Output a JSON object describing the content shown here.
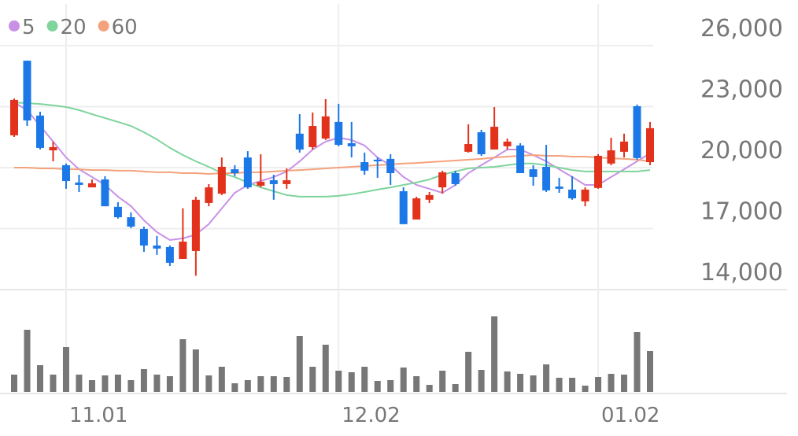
{
  "chart_data": {
    "type": "candlestick",
    "categories": [
      null,
      null,
      null,
      null,
      "11.01",
      null,
      null,
      null,
      null,
      null,
      null,
      null,
      null,
      null,
      null,
      null,
      null,
      null,
      null,
      null,
      null,
      null,
      null,
      null,
      null,
      "12.02",
      null,
      null,
      null,
      null,
      null,
      null,
      null,
      null,
      null,
      null,
      null,
      null,
      null,
      null,
      null,
      null,
      null,
      null,
      null,
      "01.02",
      null,
      null,
      null,
      null
    ],
    "open": [
      21590,
      25260,
      22560,
      20850,
      20120,
      19270,
      19030,
      19420,
      18070,
      17560,
      16980,
      16170,
      16090,
      15510,
      15900,
      18260,
      18720,
      19920,
      20500,
      19110,
      19380,
      19190,
      21670,
      21010,
      21430,
      22250,
      21200,
      20270,
      20390,
      20430,
      18840,
      17450,
      18420,
      19030,
      19730,
      20780,
      21740,
      20890,
      21050,
      21090,
      19920,
      20040,
      19070,
      18920,
      18340,
      19000,
      20200,
      20780,
      23020,
      20270
    ],
    "high": [
      23400,
      25260,
      22750,
      21280,
      20200,
      19650,
      19420,
      19580,
      18300,
      17800,
      17100,
      16640,
      16170,
      18000,
      18570,
      19190,
      20500,
      20120,
      20810,
      20660,
      19650,
      19960,
      22630,
      22710,
      23370,
      23140,
      22250,
      20740,
      20500,
      20660,
      19030,
      18570,
      18800,
      19850,
      19850,
      22130,
      21860,
      22980,
      21430,
      21200,
      20120,
      21120,
      19500,
      19580,
      19030,
      20660,
      21470,
      21670,
      23100,
      22250
    ],
    "low": [
      21510,
      22050,
      20890,
      20310,
      18960,
      18800,
      19030,
      18100,
      17490,
      17020,
      15860,
      15710,
      15160,
      15510,
      14680,
      18100,
      18650,
      19580,
      18960,
      19030,
      18420,
      18960,
      20740,
      20890,
      21360,
      21050,
      20500,
      19650,
      19500,
      19150,
      17220,
      17450,
      18260,
      18720,
      19110,
      20740,
      20580,
      20890,
      20890,
      19730,
      19110,
      18800,
      18760,
      18420,
      18100,
      18960,
      20120,
      20500,
      20390,
      20120
    ],
    "close": [
      23330,
      22320,
      20970,
      21010,
      19340,
      19150,
      19230,
      18100,
      17560,
      17100,
      16170,
      16020,
      15320,
      16360,
      18420,
      19030,
      20040,
      19730,
      19030,
      19300,
      19190,
      19380,
      20890,
      22050,
      22520,
      21120,
      21050,
      19850,
      20310,
      19730,
      17220,
      18490,
      18650,
      19770,
      19190,
      21160,
      20660,
      22010,
      21280,
      19730,
      19540,
      18880,
      18960,
      18490,
      18920,
      20580,
      20850,
      21280,
      20470,
      21940
    ],
    "up_color": "#e2321c",
    "down_color": "#1b78e6",
    "series": [
      {
        "name": "5",
        "color": "#c891e6",
        "values": [
          23210,
          22830,
          22050,
          21280,
          20500,
          19920,
          19540,
          19150,
          18570,
          18110,
          17410,
          16830,
          16440,
          16520,
          16710,
          17220,
          17990,
          18760,
          19150,
          19340,
          19540,
          19810,
          20310,
          20890,
          21280,
          21470,
          21360,
          21090,
          20500,
          20120,
          19540,
          19150,
          18960,
          18760,
          19150,
          19730,
          20120,
          20500,
          20890,
          20890,
          20620,
          20310,
          19920,
          19540,
          19150,
          19150,
          19540,
          19920,
          20310,
          20700
        ]
      },
      {
        "name": "20",
        "color": "#7fd49c",
        "values": [
          23210,
          23170,
          23130,
          23060,
          22980,
          22830,
          22630,
          22440,
          22250,
          22050,
          21740,
          21390,
          20970,
          20620,
          20310,
          20040,
          19730,
          19540,
          19270,
          19030,
          18840,
          18650,
          18570,
          18570,
          18570,
          18610,
          18690,
          18800,
          18920,
          19030,
          19150,
          19270,
          19420,
          19650,
          19810,
          19960,
          20000,
          20040,
          20120,
          20200,
          20200,
          20120,
          20000,
          19880,
          19810,
          19810,
          19810,
          19810,
          19810,
          19880
        ]
      },
      {
        "name": "60",
        "color": "#f4a27c",
        "values": [
          20000,
          20000,
          19960,
          19960,
          19920,
          19920,
          19880,
          19880,
          19850,
          19850,
          19810,
          19770,
          19770,
          19730,
          19730,
          19690,
          19730,
          19730,
          19770,
          19770,
          19810,
          19850,
          19880,
          19920,
          19960,
          20000,
          20040,
          20080,
          20120,
          20160,
          20200,
          20230,
          20270,
          20310,
          20350,
          20390,
          20430,
          20500,
          20540,
          20580,
          20620,
          20580,
          20580,
          20540,
          20540,
          20500,
          20460,
          20430,
          20390,
          20310
        ]
      }
    ],
    "volume": {
      "color": "#777777",
      "values": [
        22,
        79,
        34,
        22,
        57,
        22,
        15,
        21,
        22,
        15,
        29,
        22,
        20,
        67,
        54,
        21,
        32,
        11,
        15,
        20,
        20,
        19,
        71,
        32,
        60,
        27,
        25,
        32,
        14,
        15,
        31,
        20,
        9,
        27,
        10,
        51,
        28,
        96,
        26,
        23,
        21,
        35,
        18,
        18,
        8,
        19,
        23,
        22,
        76,
        52
      ]
    },
    "ylim": [
      14000,
      26000
    ],
    "yticks": [
      {
        "value": 14000,
        "label": "14,000"
      },
      {
        "value": 17000,
        "label": "17,000"
      },
      {
        "value": 20000,
        "label": "20,000"
      },
      {
        "value": 23000,
        "label": "23,000"
      },
      {
        "value": 26000,
        "label": "26,000"
      }
    ],
    "grid": true
  }
}
